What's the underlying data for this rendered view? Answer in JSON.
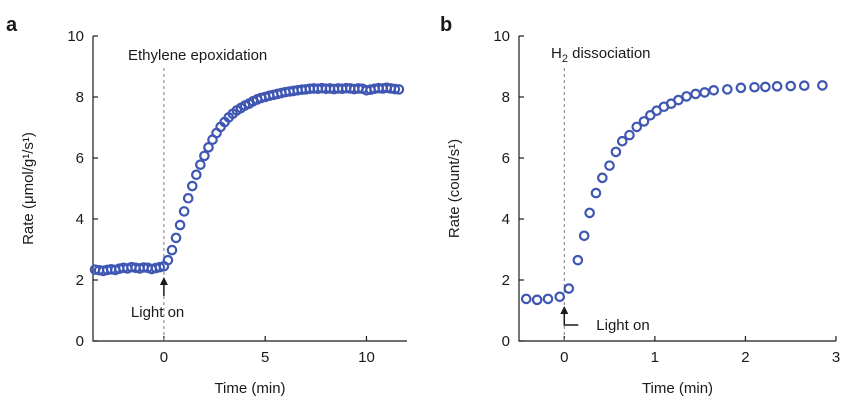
{
  "colors": {
    "marker": "#3f57b3",
    "axis": "#1a1a1a",
    "reference_line": "#777777"
  },
  "chart_data": [
    {
      "panel": "a",
      "type": "scatter",
      "annotation_title": "Ethylene epoxidation",
      "xlabel": "Time (min)",
      "ylabel": "Rate (μmol/g¹/s¹)",
      "xlim": [
        -3.5,
        12.0
      ],
      "ylim": [
        0,
        10
      ],
      "xticks": [
        0,
        5,
        10
      ],
      "yticks": [
        0,
        2,
        4,
        6,
        8,
        10
      ],
      "grid": false,
      "legend": "none",
      "reference_line_x": 0,
      "arrow_label": "Light on",
      "series": [
        {
          "marker": "open-circle",
          "x": [
            -3.4,
            -3.2,
            -3.0,
            -2.8,
            -2.6,
            -2.4,
            -2.2,
            -2.0,
            -1.8,
            -1.6,
            -1.4,
            -1.2,
            -1.0,
            -0.8,
            -0.6,
            -0.4,
            -0.2,
            0.0,
            0.2,
            0.4,
            0.6,
            0.8,
            1.0,
            1.2,
            1.4,
            1.6,
            1.8,
            2.0,
            2.2,
            2.4,
            2.6,
            2.8,
            3.0,
            3.2,
            3.4,
            3.6,
            3.8,
            4.0,
            4.2,
            4.4,
            4.6,
            4.8,
            5.0,
            5.2,
            5.4,
            5.6,
            5.8,
            6.0,
            6.2,
            6.4,
            6.6,
            6.8,
            7.0,
            7.2,
            7.4,
            7.6,
            7.8,
            8.0,
            8.2,
            8.4,
            8.6,
            8.8,
            9.0,
            9.2,
            9.4,
            9.6,
            9.8,
            10.0,
            10.2,
            10.4,
            10.6,
            10.8,
            11.0,
            11.2,
            11.4,
            11.6
          ],
          "y": [
            2.34,
            2.32,
            2.3,
            2.33,
            2.35,
            2.33,
            2.37,
            2.4,
            2.38,
            2.42,
            2.4,
            2.38,
            2.41,
            2.4,
            2.36,
            2.39,
            2.42,
            2.45,
            2.65,
            2.98,
            3.38,
            3.8,
            4.25,
            4.68,
            5.08,
            5.45,
            5.78,
            6.07,
            6.35,
            6.6,
            6.82,
            7.02,
            7.18,
            7.33,
            7.45,
            7.56,
            7.64,
            7.72,
            7.78,
            7.86,
            7.92,
            7.97,
            8.0,
            8.04,
            8.07,
            8.1,
            8.13,
            8.16,
            8.18,
            8.2,
            8.22,
            8.24,
            8.25,
            8.27,
            8.28,
            8.27,
            8.29,
            8.27,
            8.28,
            8.26,
            8.28,
            8.27,
            8.29,
            8.28,
            8.26,
            8.28,
            8.27,
            8.22,
            8.24,
            8.27,
            8.29,
            8.28,
            8.3,
            8.28,
            8.26,
            8.25
          ]
        }
      ]
    },
    {
      "panel": "b",
      "type": "scatter",
      "annotation_title_main": "H",
      "annotation_title_sub": "2",
      "annotation_title_rest": " dissociation",
      "xlabel": "Time (min)",
      "ylabel": "Rate (count/s¹)",
      "xlim": [
        -0.5,
        3.0
      ],
      "ylim": [
        0,
        10
      ],
      "xticks": [
        0,
        1,
        2,
        3
      ],
      "yticks": [
        0,
        2,
        4,
        6,
        8,
        10
      ],
      "grid": false,
      "legend": "none",
      "reference_line_x": 0,
      "arrow_label": "Light on",
      "series": [
        {
          "marker": "open-circle",
          "x": [
            -0.42,
            -0.3,
            -0.18,
            -0.05,
            0.05,
            0.15,
            0.22,
            0.28,
            0.35,
            0.42,
            0.5,
            0.57,
            0.64,
            0.72,
            0.8,
            0.88,
            0.95,
            1.02,
            1.1,
            1.18,
            1.26,
            1.35,
            1.45,
            1.55,
            1.65,
            1.8,
            1.95,
            2.1,
            2.22,
            2.35,
            2.5,
            2.65,
            2.85
          ],
          "y": [
            1.38,
            1.35,
            1.38,
            1.45,
            1.72,
            2.65,
            3.45,
            4.2,
            4.85,
            5.35,
            5.75,
            6.2,
            6.55,
            6.75,
            7.02,
            7.2,
            7.4,
            7.55,
            7.68,
            7.78,
            7.9,
            8.02,
            8.1,
            8.15,
            8.22,
            8.25,
            8.3,
            8.32,
            8.33,
            8.35,
            8.36,
            8.37,
            8.38
          ]
        }
      ]
    }
  ]
}
